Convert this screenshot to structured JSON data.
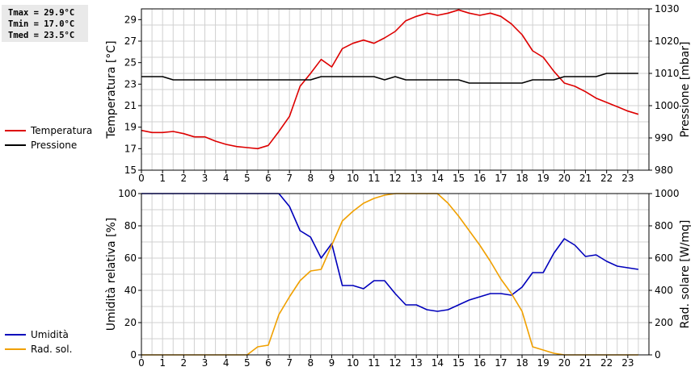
{
  "stats": {
    "tmax": "Tmax = 29.9°C",
    "tmin": "Tmin = 17.0°C",
    "tmed": "Tmed = 23.5°C"
  },
  "legend_top": [
    {
      "label": "Temperatura",
      "color": "#dd0000"
    },
    {
      "label": "Pressione",
      "color": "#000000"
    }
  ],
  "legend_bottom": [
    {
      "label": "Umidità",
      "color": "#0000bb"
    },
    {
      "label": "Rad. sol.",
      "color": "#f0a000"
    }
  ],
  "chart_data": [
    {
      "type": "line",
      "grid": true,
      "x": [
        0,
        0.5,
        1,
        1.5,
        2,
        2.5,
        3,
        3.5,
        4,
        4.5,
        5,
        5.5,
        6,
        6.5,
        7,
        7.5,
        8,
        8.5,
        9,
        9.5,
        10,
        10.5,
        11,
        11.5,
        12,
        12.5,
        13,
        13.5,
        14,
        14.5,
        15,
        15.5,
        16,
        16.5,
        17,
        17.5,
        18,
        18.5,
        19,
        19.5,
        20,
        20.5,
        21,
        21.5,
        22,
        22.5,
        23,
        23.5
      ],
      "xticks": [
        "0",
        "1",
        "2",
        "3",
        "4",
        "5",
        "6",
        "7",
        "8",
        "9",
        "10",
        "11",
        "12",
        "13",
        "14",
        "15",
        "16",
        "17",
        "18",
        "19",
        "20",
        "21",
        "22",
        "23"
      ],
      "xlim": [
        0,
        24
      ],
      "ylabel_left": "Temperatura [°C]",
      "ylim_left": [
        15,
        30
      ],
      "yticks_left": [
        "15",
        "17",
        "19",
        "21",
        "23",
        "25",
        "27",
        "29"
      ],
      "ylabel_right": "Pressione [mbar]",
      "ylim_right": [
        980,
        1030
      ],
      "yticks_right": [
        "980",
        "990",
        "1000",
        "1010",
        "1020",
        "1030"
      ],
      "series": [
        {
          "name": "Temperatura",
          "axis": "left",
          "color": "#dd0000",
          "values": [
            18.7,
            18.5,
            18.5,
            18.6,
            18.4,
            18.1,
            18.1,
            17.7,
            17.4,
            17.2,
            17.1,
            17.0,
            17.3,
            18.6,
            20.0,
            22.8,
            24.0,
            25.3,
            24.6,
            26.3,
            26.8,
            27.1,
            26.8,
            27.3,
            27.9,
            28.9,
            29.3,
            29.6,
            29.4,
            29.6,
            29.9,
            29.6,
            29.4,
            29.6,
            29.3,
            28.6,
            27.6,
            26.1,
            25.5,
            24.2,
            23.1,
            22.8,
            22.3,
            21.7,
            21.3,
            20.9,
            20.5,
            20.2
          ]
        },
        {
          "name": "Pressione",
          "axis": "right",
          "color": "#000000",
          "values": [
            1009,
            1009,
            1009,
            1008,
            1008,
            1008,
            1008,
            1008,
            1008,
            1008,
            1008,
            1008,
            1008,
            1008,
            1008,
            1008,
            1008,
            1009,
            1009,
            1009,
            1009,
            1009,
            1009,
            1008,
            1009,
            1008,
            1008,
            1008,
            1008,
            1008,
            1008,
            1007,
            1007,
            1007,
            1007,
            1007,
            1007,
            1008,
            1008,
            1008,
            1009,
            1009,
            1009,
            1009,
            1010,
            1010,
            1010,
            1010
          ]
        }
      ]
    },
    {
      "type": "line",
      "grid": true,
      "x": [
        0,
        0.5,
        1,
        1.5,
        2,
        2.5,
        3,
        3.5,
        4,
        4.5,
        5,
        5.5,
        6,
        6.5,
        7,
        7.5,
        8,
        8.5,
        9,
        9.5,
        10,
        10.5,
        11,
        11.5,
        12,
        12.5,
        13,
        13.5,
        14,
        14.5,
        15,
        15.5,
        16,
        16.5,
        17,
        17.5,
        18,
        18.5,
        19,
        19.5,
        20,
        20.5,
        21,
        21.5,
        22,
        22.5,
        23,
        23.5
      ],
      "xticks": [
        "0",
        "1",
        "2",
        "3",
        "4",
        "5",
        "6",
        "7",
        "8",
        "9",
        "10",
        "11",
        "12",
        "13",
        "14",
        "15",
        "16",
        "17",
        "18",
        "19",
        "20",
        "21",
        "22",
        "23"
      ],
      "xlim": [
        0,
        24
      ],
      "ylabel_left": "Umidità relativa [%]",
      "ylim_left": [
        0,
        100
      ],
      "yticks_left": [
        "0",
        "20",
        "40",
        "60",
        "80",
        "100"
      ],
      "ylabel_right": "Rad. solare [W/mq]",
      "ylim_right": [
        0,
        1000
      ],
      "yticks_right": [
        "0",
        "200",
        "400",
        "600",
        "800",
        "1000"
      ],
      "series": [
        {
          "name": "Umidità",
          "axis": "left",
          "color": "#0000bb",
          "values": [
            100,
            100,
            100,
            100,
            100,
            100,
            100,
            100,
            100,
            100,
            100,
            100,
            100,
            100,
            92,
            77,
            73,
            60,
            69,
            43,
            43,
            41,
            46,
            46,
            38,
            31,
            31,
            28,
            27,
            28,
            31,
            34,
            36,
            38,
            38,
            37,
            42,
            51,
            51,
            63,
            72,
            68,
            61,
            62,
            58,
            55,
            54,
            53
          ]
        },
        {
          "name": "Rad. sol.",
          "axis": "right",
          "color": "#f0a000",
          "values": [
            0,
            0,
            0,
            0,
            0,
            0,
            0,
            0,
            0,
            0,
            0,
            50,
            60,
            250,
            360,
            460,
            520,
            530,
            680,
            830,
            890,
            940,
            970,
            990,
            1010,
            1030,
            1040,
            1050,
            1000,
            940,
            860,
            770,
            680,
            580,
            470,
            380,
            270,
            50,
            30,
            10,
            0,
            0,
            0,
            0,
            0,
            0,
            0,
            0
          ]
        }
      ]
    }
  ]
}
